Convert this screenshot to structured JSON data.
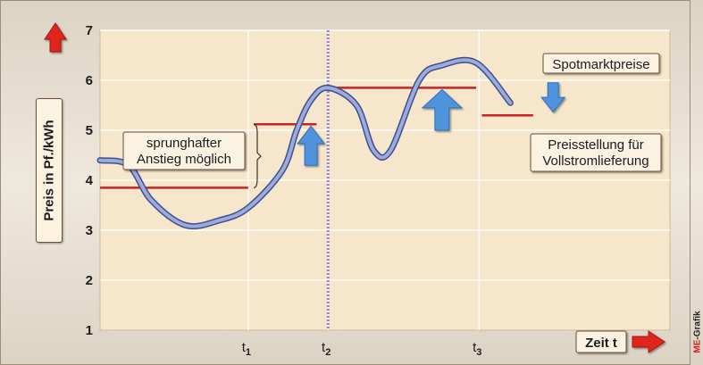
{
  "chart_data": {
    "type": "line",
    "ylabel": "Preis in Pf./kWh",
    "xlabel": "Zeit t",
    "ylim": [
      1,
      7
    ],
    "y_ticks": [
      "1",
      "2",
      "3",
      "4",
      "5",
      "6",
      "7"
    ],
    "x_ticks": [
      {
        "label": "t",
        "sub": "1",
        "x": 0.26
      },
      {
        "label": "t",
        "sub": "2",
        "x": 0.4
      },
      {
        "label": "t",
        "sub": "3",
        "x": 0.665
      }
    ],
    "grid": true,
    "series": [
      {
        "name": "Spotmarktpreise",
        "x": [
          0.0,
          0.05,
          0.09,
          0.15,
          0.21,
          0.26,
          0.32,
          0.345,
          0.37,
          0.4,
          0.45,
          0.48,
          0.51,
          0.56,
          0.6,
          0.66,
          0.72
        ],
        "y": [
          4.4,
          4.3,
          3.6,
          3.1,
          3.2,
          3.45,
          4.2,
          5.0,
          5.6,
          5.85,
          5.5,
          4.6,
          4.6,
          6.0,
          6.3,
          6.35,
          5.55
        ]
      }
    ],
    "steps": {
      "name": "Preisstellung für Vollstromlieferung",
      "segments": [
        {
          "x": [
            0.0,
            0.26
          ],
          "y": 3.85
        },
        {
          "x": [
            0.27,
            0.38
          ],
          "y": 5.12
        },
        {
          "x": [
            0.4,
            0.66
          ],
          "y": 5.85
        },
        {
          "x": [
            0.67,
            0.76
          ],
          "y": 5.3
        }
      ]
    },
    "vertical_marker": {
      "x": 0.4
    },
    "annotations": {
      "spot": "Spotmarktpreise",
      "voll_line1": "Preisstellung für",
      "voll_line2": "Vollstromlieferung",
      "jump_line1": "sprunghafter",
      "jump_line2": "Anstieg möglich"
    },
    "colors": {
      "plot_bg": "#f6e6cb",
      "frame_bg": "#efe8dc",
      "grid": "#ffffff",
      "curve_fill": "#9cabdc",
      "curve_edge": "#3e4f8e",
      "step_line": "#cc2222",
      "marker": "#9a7fd0",
      "arrow_blue": "#4f93dd",
      "arrow_red": "#e0251f"
    }
  },
  "credit": {
    "brand": "ME",
    "suffix": "-Grafik"
  }
}
